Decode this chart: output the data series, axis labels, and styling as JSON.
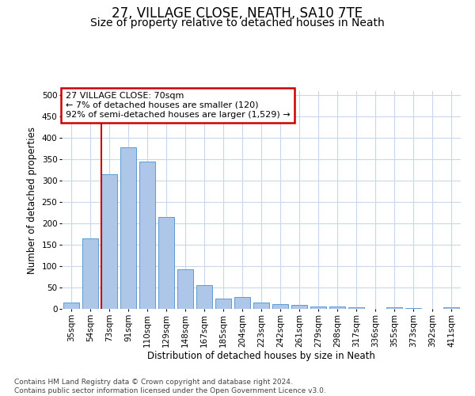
{
  "title": "27, VILLAGE CLOSE, NEATH, SA10 7TE",
  "subtitle": "Size of property relative to detached houses in Neath",
  "xlabel": "Distribution of detached houses by size in Neath",
  "ylabel": "Number of detached properties",
  "categories": [
    "35sqm",
    "54sqm",
    "73sqm",
    "91sqm",
    "110sqm",
    "129sqm",
    "148sqm",
    "167sqm",
    "185sqm",
    "204sqm",
    "223sqm",
    "242sqm",
    "261sqm",
    "279sqm",
    "298sqm",
    "317sqm",
    "336sqm",
    "355sqm",
    "373sqm",
    "392sqm",
    "411sqm"
  ],
  "values": [
    15,
    165,
    315,
    378,
    345,
    215,
    93,
    56,
    25,
    28,
    15,
    12,
    10,
    6,
    5,
    4,
    0,
    3,
    1,
    0,
    3
  ],
  "bar_color": "#aec6e8",
  "bar_edge_color": "#5b9bd5",
  "vline_x_index": 2,
  "vline_color": "#cc0000",
  "annotation_text": "27 VILLAGE CLOSE: 70sqm\n← 7% of detached houses are smaller (120)\n92% of semi-detached houses are larger (1,529) →",
  "annotation_box_color": "#cc0000",
  "ylim": [
    0,
    510
  ],
  "yticks": [
    0,
    50,
    100,
    150,
    200,
    250,
    300,
    350,
    400,
    450,
    500
  ],
  "footer_text": "Contains HM Land Registry data © Crown copyright and database right 2024.\nContains public sector information licensed under the Open Government Licence v3.0.",
  "background_color": "#ffffff",
  "grid_color": "#c8d8e8",
  "title_fontsize": 12,
  "subtitle_fontsize": 10,
  "axis_label_fontsize": 8.5,
  "tick_fontsize": 7.5,
  "footer_fontsize": 6.5
}
